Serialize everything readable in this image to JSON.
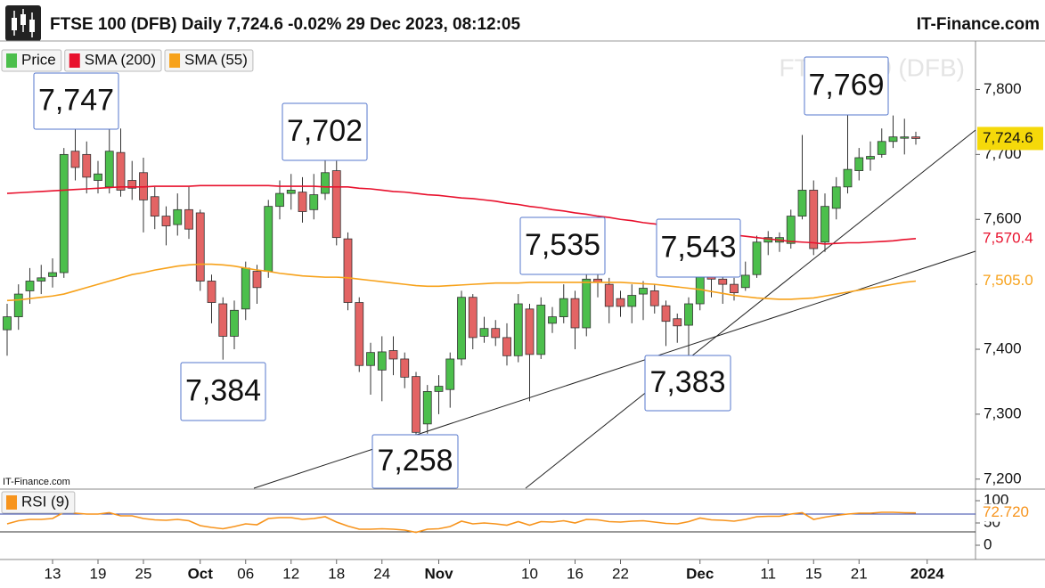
{
  "chart_data": [
    {
      "type": "candlestick",
      "title": "FTSE 100 (DFB) Daily 7,724.6 -0.02% 29 Dec 2023, 08:12:05",
      "source": "IT-Finance.com",
      "credit": "IT-Finance.com",
      "watermark": "FTSE 100 (DFB)",
      "categories": [
        null,
        null,
        null,
        null,
        "13",
        null,
        null,
        null,
        "19",
        null,
        null,
        null,
        "25",
        null,
        null,
        null,
        null,
        "Oct",
        null,
        null,
        null,
        "06",
        null,
        null,
        null,
        "12",
        null,
        null,
        null,
        "18",
        null,
        null,
        null,
        "24",
        null,
        null,
        null,
        null,
        "Nov",
        null,
        null,
        null,
        null,
        null,
        null,
        null,
        "10",
        null,
        null,
        null,
        "16",
        null,
        null,
        null,
        "22",
        null,
        null,
        null,
        null,
        null,
        null,
        "Dec",
        null,
        null,
        null,
        null,
        null,
        "11",
        null,
        null,
        null,
        "15",
        null,
        null,
        null,
        "21",
        null,
        null,
        null,
        null,
        null,
        "2024"
      ],
      "price": {
        "name": "Price",
        "up_color": "#4cbf4c",
        "down_color": "#e36464",
        "open": [
          7430,
          7450,
          7490,
          7505,
          7512,
          7518,
          7705,
          7700,
          7660,
          7650,
          7703,
          7660,
          7672,
          7635,
          7605,
          7592,
          7615,
          7610,
          7505,
          7470,
          7420,
          7462,
          7520,
          7520,
          7620,
          7640,
          7642,
          7615,
          7640,
          7675,
          7570,
          7472,
          7375,
          7368,
          7398,
          7385,
          7358,
          7285,
          7335,
          7338,
          7385,
          7480,
          7420,
          7432,
          7418,
          7390,
          7462,
          7392,
          7440,
          7450,
          7478,
          7433,
          7508,
          7500,
          7478,
          7466,
          7485,
          7490,
          7467,
          7447,
          7437,
          7470,
          7535,
          7508,
          7500,
          7495,
          7515,
          7565,
          7565,
          7563,
          7605,
          7645,
          7565,
          7617,
          7650,
          7675,
          7693,
          7700,
          7720,
          7726,
          7727,
          null
        ],
        "high": [
          7470,
          7500,
          7525,
          7530,
          7540,
          7710,
          7747,
          7720,
          7690,
          7745,
          7740,
          7690,
          7695,
          7650,
          7620,
          7640,
          7650,
          7615,
          7515,
          7480,
          7475,
          7535,
          7530,
          7630,
          7660,
          7670,
          7665,
          7670,
          7702,
          7690,
          7580,
          7480,
          7410,
          7420,
          7420,
          7395,
          7365,
          7345,
          7360,
          7395,
          7490,
          7485,
          7450,
          7445,
          7440,
          7485,
          7470,
          7480,
          7465,
          7500,
          7490,
          7530,
          7515,
          7510,
          7490,
          7500,
          7505,
          7500,
          7475,
          7455,
          7480,
          7543,
          7545,
          7520,
          7510,
          7535,
          7575,
          7582,
          7580,
          7615,
          7730,
          7660,
          7640,
          7665,
          7769,
          7710,
          7720,
          7740,
          7760,
          7755,
          7735,
          null
        ],
        "low": [
          7390,
          7430,
          7470,
          7485,
          7495,
          7510,
          7660,
          7640,
          7640,
          7640,
          7635,
          7630,
          7580,
          7585,
          7560,
          7575,
          7570,
          7490,
          7440,
          7384,
          7400,
          7445,
          7470,
          7510,
          7600,
          7615,
          7595,
          7600,
          7630,
          7560,
          7460,
          7365,
          7330,
          7320,
          7360,
          7340,
          7258,
          7270,
          7300,
          7310,
          7375,
          7400,
          7410,
          7405,
          7375,
          7380,
          7320,
          7385,
          7425,
          7440,
          7400,
          7420,
          7480,
          7440,
          7450,
          7440,
          7445,
          7455,
          7405,
          7410,
          7383,
          7460,
          7480,
          7470,
          7475,
          7490,
          7510,
          7545,
          7550,
          7555,
          7600,
          7545,
          7550,
          7600,
          7640,
          7660,
          7675,
          7695,
          7710,
          7700,
          7715,
          null
        ],
        "close": [
          7450,
          7485,
          7505,
          7510,
          7518,
          7700,
          7680,
          7665,
          7670,
          7705,
          7645,
          7648,
          7630,
          7605,
          7590,
          7615,
          7585,
          7505,
          7472,
          7420,
          7460,
          7525,
          7495,
          7620,
          7640,
          7645,
          7612,
          7638,
          7672,
          7572,
          7472,
          7375,
          7395,
          7396,
          7385,
          7357,
          7272,
          7335,
          7343,
          7385,
          7480,
          7418,
          7432,
          7418,
          7390,
          7470,
          7392,
          7468,
          7450,
          7478,
          7433,
          7508,
          7503,
          7466,
          7466,
          7483,
          7494,
          7467,
          7443,
          7436,
          7470,
          7533,
          7508,
          7500,
          7487,
          7514,
          7565,
          7572,
          7572,
          7605,
          7645,
          7555,
          7620,
          7650,
          7677,
          7695,
          7697,
          7720,
          7727,
          7727,
          7724.6,
          null
        ],
        "last_label": "7,724.6"
      },
      "series": [
        {
          "name": "SMA (200)",
          "color": "#e8112d",
          "value_label": "7,570.4",
          "values": [
            7640,
            7641,
            7642,
            7643,
            7644,
            7645,
            7646,
            7647,
            7648,
            7649,
            7650,
            7650,
            7650,
            7651,
            7651,
            7651,
            7651,
            7652,
            7652,
            7652,
            7652,
            7652,
            7652,
            7652,
            7651,
            7651,
            7651,
            7651,
            7650,
            7650,
            7650,
            7648,
            7647,
            7645,
            7643,
            7642,
            7640,
            7638,
            7637,
            7635,
            7633,
            7632,
            7630,
            7628,
            7625,
            7623,
            7620,
            7618,
            7615,
            7613,
            7610,
            7608,
            7605,
            7603,
            7600,
            7598,
            7595,
            7593,
            7590,
            7588,
            7585,
            7583,
            7580,
            7578,
            7576,
            7574,
            7572,
            7570,
            7568,
            7566,
            7565,
            7564,
            7562,
            7563,
            7564,
            7564,
            7565,
            7566,
            7567,
            7569,
            7570.4,
            null
          ]
        },
        {
          "name": "SMA (55)",
          "color": "#f7a21b",
          "value_label": "7,505.0",
          "values": [
            7475,
            7476,
            7478,
            7480,
            7482,
            7485,
            7490,
            7495,
            7500,
            7505,
            7510,
            7515,
            7518,
            7522,
            7525,
            7528,
            7530,
            7531,
            7531,
            7530,
            7528,
            7525,
            7522,
            7520,
            7517,
            7515,
            7513,
            7512,
            7511,
            7511,
            7510,
            7508,
            7506,
            7504,
            7502,
            7500,
            7498,
            7497,
            7497,
            7498,
            7499,
            7500,
            7501,
            7502,
            7502,
            7502,
            7503,
            7503,
            7503,
            7503,
            7503,
            7503,
            7503,
            7503,
            7503,
            7502,
            7501,
            7500,
            7498,
            7496,
            7494,
            7492,
            7489,
            7486,
            7483,
            7481,
            7479,
            7478,
            7477,
            7477,
            7478,
            7479,
            7482,
            7485,
            7488,
            7491,
            7494,
            7497,
            7500,
            7503,
            7505.0,
            null
          ]
        }
      ],
      "ylim": [
        7186,
        7872
      ],
      "yticks": [
        {
          "value": 7200,
          "label": "7,200"
        },
        {
          "value": 7300,
          "label": "7,300"
        },
        {
          "value": 7400,
          "label": "7,400"
        },
        {
          "value": 7500,
          "label": "7,500"
        },
        {
          "value": 7600,
          "label": "7,600"
        },
        {
          "value": 7700,
          "label": "7,700"
        },
        {
          "value": 7800,
          "label": "7,800"
        }
      ],
      "annotations": [
        "7,747",
        "7,702",
        "7,384",
        "7,258",
        "7,535",
        "7,543",
        "7,383",
        "7,769"
      ]
    },
    {
      "type": "line",
      "series": [
        {
          "name": "RSI (9)",
          "color": "#f7941d",
          "value_label": "72.720",
          "values": [
            48,
            55,
            58,
            58,
            60,
            74,
            72,
            70,
            70,
            73,
            66,
            66,
            60,
            57,
            56,
            58,
            55,
            44,
            40,
            37,
            42,
            48,
            46,
            60,
            62,
            62,
            58,
            60,
            64,
            52,
            43,
            36,
            36,
            37,
            36,
            34,
            29,
            36,
            37,
            42,
            54,
            48,
            50,
            48,
            45,
            53,
            45,
            53,
            52,
            55,
            50,
            58,
            57,
            53,
            52,
            54,
            55,
            52,
            49,
            48,
            53,
            61,
            57,
            56,
            54,
            58,
            64,
            65,
            65,
            70,
            73,
            58,
            63,
            67,
            70,
            72,
            72,
            74,
            74,
            73,
            72.72,
            null
          ]
        }
      ],
      "levels": [
        70,
        30
      ],
      "ylim": [
        -28,
        122
      ],
      "yticks": [
        0,
        50,
        100
      ]
    }
  ]
}
